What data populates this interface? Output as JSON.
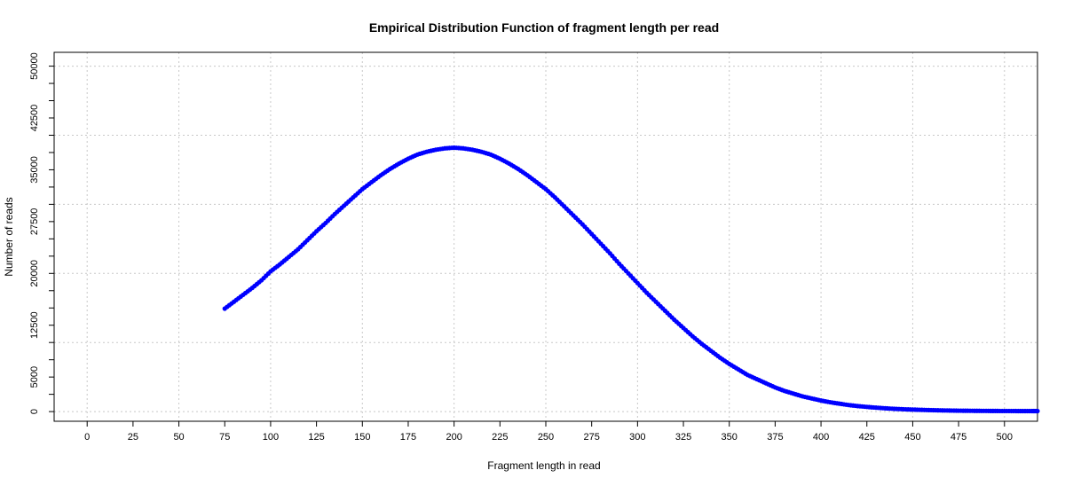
{
  "chart_data": {
    "type": "scatter",
    "title": "Empirical Distribution Function of fragment length per read",
    "xlabel": "Fragment length in read",
    "ylabel": "Number of reads",
    "xlim": [
      -18,
      518
    ],
    "ylim": [
      -1400,
      52000
    ],
    "x_ticks": [
      0,
      25,
      50,
      75,
      100,
      125,
      150,
      175,
      200,
      225,
      250,
      275,
      300,
      325,
      350,
      375,
      400,
      425,
      450,
      475,
      500
    ],
    "y_ticks": [
      0,
      5000,
      12500,
      20000,
      27500,
      35000,
      42500,
      50000
    ],
    "y_minor_ticks": [
      2500,
      7500,
      10000,
      15000,
      17500,
      22500,
      25000,
      30000,
      32500,
      37500,
      40000,
      45000,
      47500
    ],
    "x_grid": [
      0,
      50,
      100,
      150,
      200,
      250,
      300,
      350,
      400,
      450,
      500
    ],
    "y_grid": [
      0,
      10000,
      20000,
      30000,
      40000,
      50000
    ],
    "grid": true,
    "colors": {
      "points": "#0000ff",
      "grid": "#c8c8c8",
      "axis": "#000000"
    },
    "series": [
      {
        "x": [
          75,
          80,
          85,
          90,
          95,
          100,
          105,
          110,
          115,
          120,
          125,
          130,
          135,
          140,
          145,
          150,
          155,
          160,
          165,
          170,
          175,
          180,
          185,
          190,
          195,
          200,
          205,
          210,
          215,
          220,
          225,
          230,
          235,
          240,
          245,
          250,
          255,
          260,
          265,
          270,
          275,
          280,
          285,
          290,
          295,
          300,
          305,
          310,
          315,
          320,
          325,
          330,
          335,
          340,
          345,
          350,
          355,
          360,
          365,
          370,
          375,
          380,
          385,
          390,
          395,
          400,
          405,
          410,
          415,
          420,
          425,
          430,
          435,
          440,
          445,
          450,
          455,
          460,
          465,
          470,
          475,
          480,
          485,
          490,
          495,
          500,
          505,
          510,
          515,
          518
        ],
        "y": [
          14900,
          15900,
          16900,
          17900,
          19000,
          20300,
          21300,
          22400,
          23500,
          24800,
          26100,
          27300,
          28600,
          29800,
          31000,
          32200,
          33200,
          34200,
          35100,
          35900,
          36600,
          37200,
          37600,
          37900,
          38100,
          38200,
          38100,
          37900,
          37600,
          37200,
          36600,
          35900,
          35100,
          34200,
          33200,
          32200,
          31000,
          29700,
          28400,
          27100,
          25700,
          24300,
          22900,
          21400,
          20000,
          18600,
          17200,
          15900,
          14600,
          13300,
          12100,
          10900,
          9800,
          8800,
          7800,
          6900,
          6100,
          5300,
          4700,
          4100,
          3500,
          3000,
          2600,
          2200,
          1900,
          1600,
          1350,
          1150,
          950,
          800,
          680,
          570,
          480,
          400,
          340,
          290,
          250,
          210,
          180,
          155,
          135,
          120,
          108,
          98,
          90,
          84,
          80,
          77,
          75,
          74
        ]
      }
    ]
  }
}
